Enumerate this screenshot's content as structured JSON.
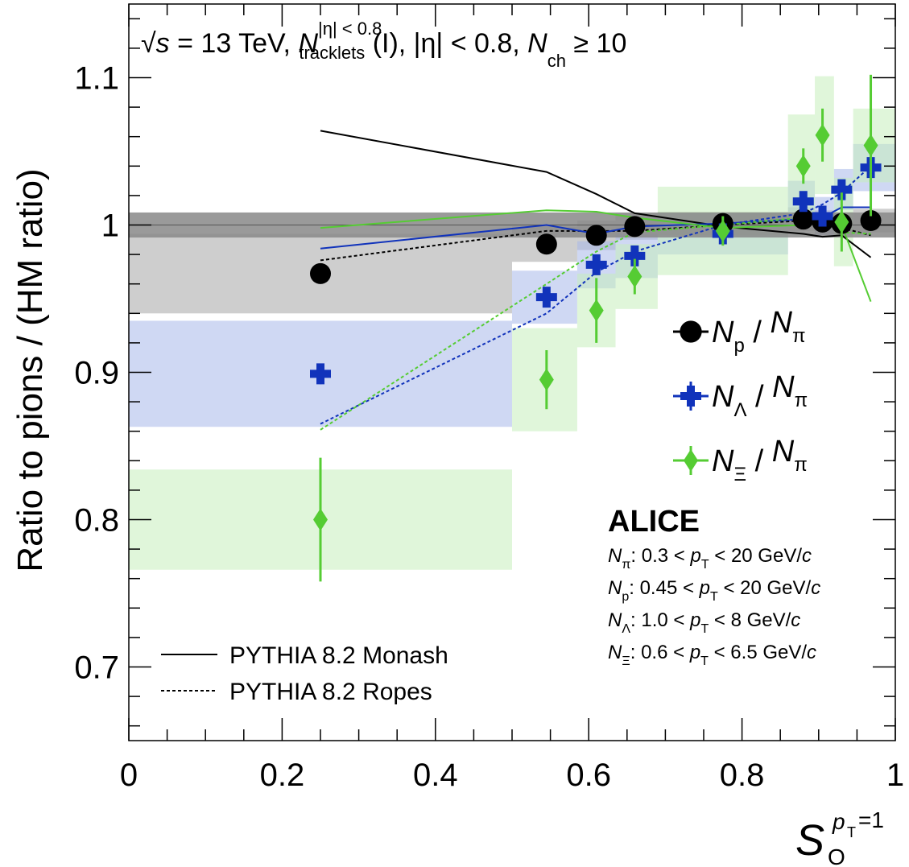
{
  "chart_data": {
    "type": "scatter",
    "title": "",
    "header": {
      "sqrt": "√",
      "s": "s",
      "energy": " = 13 TeV,  ",
      "N": "N",
      "sup": "|η| < 0.8",
      "sub": "tracklets",
      "rest": " (I), |η| < 0.8, ",
      "N2": "N",
      "sub2": "ch",
      "rest2": " ≥ 10"
    },
    "ylabel": "Ratio to pions / (HM ratio)",
    "xlabel": {
      "S": "S",
      "sub": "O",
      "sup_p": "p",
      "sup_T": "T",
      "sup_rest": "=1"
    },
    "xlim": [
      0,
      1
    ],
    "ylim": [
      0.65,
      1.15
    ],
    "x_ticks": [
      {
        "v": 0,
        "label": "0"
      },
      {
        "v": 0.2,
        "label": "0.2"
      },
      {
        "v": 0.4,
        "label": "0.4"
      },
      {
        "v": 0.6,
        "label": "0.6"
      },
      {
        "v": 0.8,
        "label": "0.8"
      },
      {
        "v": 1,
        "label": "1"
      }
    ],
    "y_ticks": [
      {
        "v": 0.7,
        "label": "0.7"
      },
      {
        "v": 0.8,
        "label": "0.8"
      },
      {
        "v": 0.9,
        "label": "0.9"
      },
      {
        "v": 1.0,
        "label": "1"
      },
      {
        "v": 1.1,
        "label": "1.1"
      }
    ],
    "bins": [
      [
        0,
        0.5
      ],
      [
        0.5,
        0.585
      ],
      [
        0.585,
        0.635
      ],
      [
        0.635,
        0.69
      ],
      [
        0.69,
        0.86
      ],
      [
        0.86,
        0.895
      ],
      [
        0.895,
        0.92
      ],
      [
        0.92,
        0.945
      ],
      [
        0.945,
        1.0
      ]
    ],
    "hm_band": {
      "lo": 0.9915,
      "hi": 1.0085,
      "color": "#888888"
    },
    "series": [
      {
        "name_N": "N",
        "name_sub": "p",
        "den_N": "N",
        "den_sub": "π",
        "marker": "circle",
        "color": "#000000",
        "band_color": "#a6a6a6",
        "x": [
          0.25,
          0.545,
          0.61,
          0.66,
          0.775,
          0.88,
          0.905,
          0.93,
          0.968
        ],
        "y": [
          0.967,
          0.987,
          0.993,
          0.999,
          1.001,
          1.004,
          1.002,
          1.001,
          1.003
        ],
        "err": [
          0.003,
          0.003,
          0.003,
          0.003,
          0.003,
          0.003,
          0.003,
          0.003,
          0.003
        ],
        "sys": [
          0.027,
          0.012,
          0.01,
          0.009,
          0.008,
          0.008,
          0.008,
          0.008,
          0.008
        ]
      },
      {
        "name_N": "N",
        "name_sub": "Λ",
        "den_N": "N",
        "den_sub": "π",
        "marker": "cross",
        "color": "#1133bb",
        "band_color": "#a8b8ea",
        "x": [
          0.25,
          0.545,
          0.61,
          0.66,
          0.775,
          0.88,
          0.905,
          0.93,
          0.968
        ],
        "y": [
          0.899,
          0.951,
          0.973,
          0.979,
          0.994,
          1.016,
          1.006,
          1.024,
          1.039
        ],
        "err": [
          0.007,
          0.006,
          0.006,
          0.006,
          0.006,
          0.006,
          0.006,
          0.006,
          0.006
        ],
        "sys": [
          0.036,
          0.018,
          0.016,
          0.015,
          0.014,
          0.014,
          0.013,
          0.014,
          0.016
        ]
      },
      {
        "name_N": "N",
        "name_sub": "Ξ",
        "den_N": "N",
        "den_sub": "π",
        "marker": "diamond",
        "color": "#55cc33",
        "band_color": "#c6eebb",
        "x": [
          0.25,
          0.545,
          0.61,
          0.66,
          0.775,
          0.88,
          0.905,
          0.93,
          0.968
        ],
        "y": [
          0.8,
          0.895,
          0.942,
          0.965,
          0.996,
          1.04,
          1.061,
          1.002,
          1.054
        ],
        "err": [
          0.042,
          0.02,
          0.022,
          0.012,
          0.01,
          0.012,
          0.018,
          0.02,
          0.048
        ],
        "sys": [
          0.034,
          0.035,
          0.025,
          0.022,
          0.03,
          0.035,
          0.04,
          0.03,
          0.025
        ]
      }
    ],
    "models": [
      {
        "style": "solid",
        "color": "#000000",
        "x": [
          0.25,
          0.545,
          0.61,
          0.66,
          0.775,
          0.88,
          0.905,
          0.93,
          0.968
        ],
        "y": [
          1.064,
          1.036,
          1.021,
          1.008,
          0.999,
          0.994,
          0.992,
          0.993,
          0.978
        ]
      },
      {
        "style": "dashed",
        "color": "#000000",
        "x": [
          0.25,
          0.545,
          0.61,
          0.66,
          0.775,
          0.88,
          0.905,
          0.93,
          0.968
        ],
        "y": [
          0.976,
          0.996,
          0.996,
          0.996,
          1.0,
          1.003,
          1.0,
          0.998,
          0.993
        ]
      },
      {
        "style": "solid",
        "color": "#1133bb",
        "x": [
          0.25,
          0.545,
          0.61,
          0.66,
          0.775,
          0.88,
          0.905,
          0.93,
          0.968
        ],
        "y": [
          0.984,
          1.0,
          0.994,
          0.999,
          1.001,
          1.004,
          1.005,
          1.012,
          1.012
        ]
      },
      {
        "style": "dashed",
        "color": "#1133bb",
        "x": [
          0.25,
          0.545,
          0.61,
          0.66,
          0.775,
          0.88,
          0.905,
          0.93,
          0.968
        ],
        "y": [
          0.865,
          0.94,
          0.968,
          0.982,
          1.0,
          1.008,
          1.014,
          1.022,
          1.04
        ]
      },
      {
        "style": "solid",
        "color": "#55cc33",
        "x": [
          0.25,
          0.545,
          0.61,
          0.66,
          0.775,
          0.88,
          0.905,
          0.93,
          0.968
        ],
        "y": [
          0.998,
          1.01,
          1.009,
          1.005,
          0.998,
          1.0,
          1.002,
          1.0,
          0.948
        ]
      },
      {
        "style": "dashed",
        "color": "#55cc33",
        "x": [
          0.25,
          0.545,
          0.61,
          0.66,
          0.775,
          0.88,
          0.905,
          0.93,
          0.968
        ],
        "y": [
          0.861,
          0.96,
          0.982,
          0.995,
          1.0,
          1.005,
          1.008,
          0.995,
          0.994
        ]
      }
    ],
    "model_legend": [
      {
        "style": "solid",
        "label": "PYTHIA 8.2 Monash"
      },
      {
        "style": "dashed",
        "label": "PYTHIA 8.2 Ropes"
      }
    ],
    "experiment": "ALICE",
    "cuts": [
      {
        "N": "N",
        "sub": "π",
        "text1": ": 0.3 < ",
        "p": "p",
        "T": "T",
        "text2": " < 20 GeV/",
        "c": "c"
      },
      {
        "N": "N",
        "sub": "p",
        "text1": ": 0.45 < ",
        "p": "p",
        "T": "T",
        "text2": " < 20 GeV/",
        "c": "c"
      },
      {
        "N": "N",
        "sub": "Λ",
        "text1": ": 1.0 < ",
        "p": "p",
        "T": "T",
        "text2": " < 8 GeV/",
        "c": "c"
      },
      {
        "N": "N",
        "sub": "Ξ",
        "text1": ": 0.6 < ",
        "p": "p",
        "T": "T",
        "text2": " < 6.5 GeV/",
        "c": "c"
      }
    ],
    "separator": " / "
  }
}
